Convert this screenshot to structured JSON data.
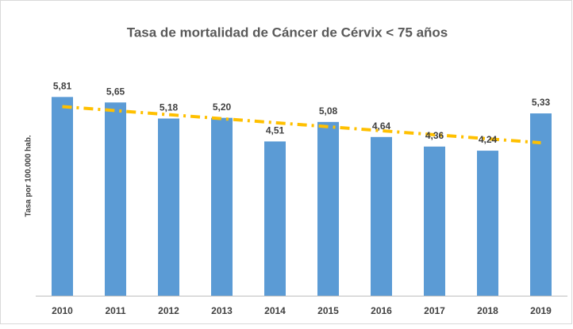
{
  "chart_data": {
    "type": "bar",
    "title": "Tasa de mortalidad de Cáncer de Cérvix < 75 años",
    "y_label": "Tasa por 100.000 hab.",
    "categories": [
      "2010",
      "2011",
      "2012",
      "2013",
      "2014",
      "2015",
      "2016",
      "2017",
      "2018",
      "2019"
    ],
    "values": [
      5.81,
      5.65,
      5.18,
      5.2,
      4.51,
      5.08,
      4.64,
      4.36,
      4.24,
      5.33
    ],
    "value_labels": [
      "5,81",
      "5,65",
      "5,18",
      "5,20",
      "4,51",
      "5,08",
      "4,64",
      "4,36",
      "4,24",
      "5,33"
    ],
    "color": "#5b9bd5",
    "trendline": {
      "type": "linear",
      "color": "#ffc000"
    },
    "ylim": [
      0,
      7
    ]
  }
}
